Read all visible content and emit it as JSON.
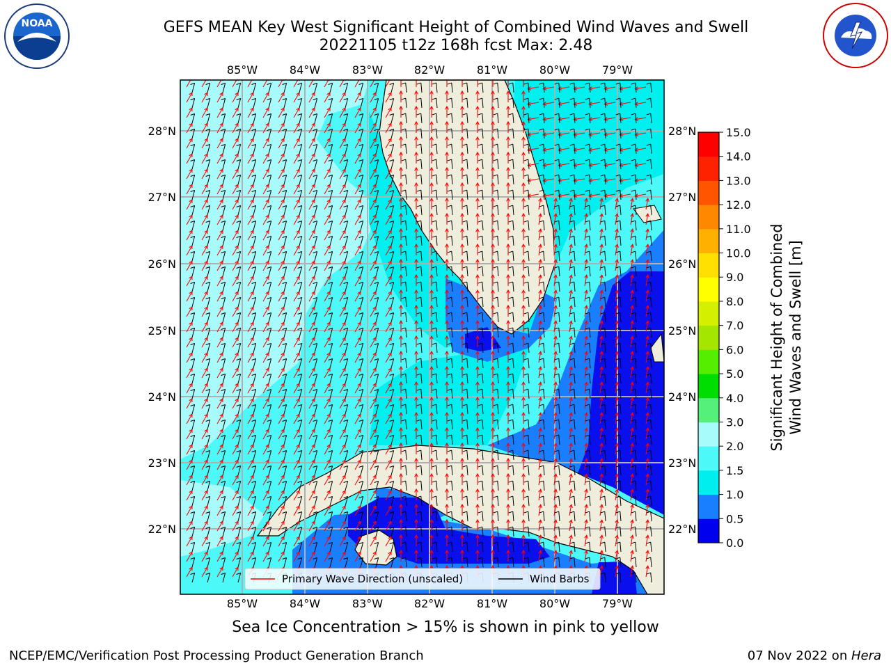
{
  "title_line1": "GEFS MEAN Key West Significant Height of Combined Wind Waves and Swell",
  "title_line2": "20221105 t12z 168h fcst   Max: 2.48",
  "logos": {
    "left": {
      "name": "noaa-logo",
      "text": "NOAA",
      "ring_text": "NATIONAL OCEANIC AND ATMOSPHERIC ADMINISTRATION · U.S. DEPARTMENT OF COMMERCE"
    },
    "right": {
      "name": "nws-logo",
      "ring_text": "NATIONAL WEATHER SERVICE"
    }
  },
  "map": {
    "lon_ticks": [
      "85°W",
      "84°W",
      "83°W",
      "82°W",
      "81°W",
      "80°W",
      "79°W"
    ],
    "lat_ticks": [
      "28°N",
      "27°N",
      "26°N",
      "25°N",
      "24°N",
      "23°N",
      "22°N"
    ],
    "legend": {
      "wave_direction": "Primary Wave Direction (unscaled)",
      "wind_barbs": "Wind Barbs"
    },
    "colors": {
      "land": "#efeedc",
      "sea_light": "#a8fbfb",
      "sea_mid": "#4df8f8",
      "sea_cyan": "#00f0f0",
      "sea_blue": "#1a7fff",
      "sea_deep": "#0a0fee",
      "wave_arrow": "#ff0000",
      "barb": "#000000"
    }
  },
  "colorbar": {
    "label_line1": "Significant Height of Combined",
    "label_line2": "Wind Waves and Swell [m]",
    "ticks": [
      "0.0",
      "0.5",
      "1.0",
      "1.5",
      "2.0",
      "3.0",
      "4.0",
      "5.0",
      "6.0",
      "7.0",
      "8.0",
      "9.0",
      "10.0",
      "11.0",
      "12.0",
      "13.0",
      "14.0",
      "15.0"
    ],
    "colors": [
      "#0000ee",
      "#1a7fff",
      "#00eeee",
      "#4df8f8",
      "#a8fbfb",
      "#55f07a",
      "#00dd00",
      "#55ee00",
      "#a4e600",
      "#d4ef00",
      "#ffff00",
      "#ffe000",
      "#ffb000",
      "#ff8800",
      "#ff5500",
      "#ff2200",
      "#ff0000"
    ]
  },
  "caption": "Sea Ice Concentration > 15% is shown in pink to yellow",
  "footer_left": "NCEP/EMC/Verification Post Processing Product Generation Branch",
  "footer_right_date": "07 Nov 2022 on ",
  "footer_right_host": "Hera"
}
